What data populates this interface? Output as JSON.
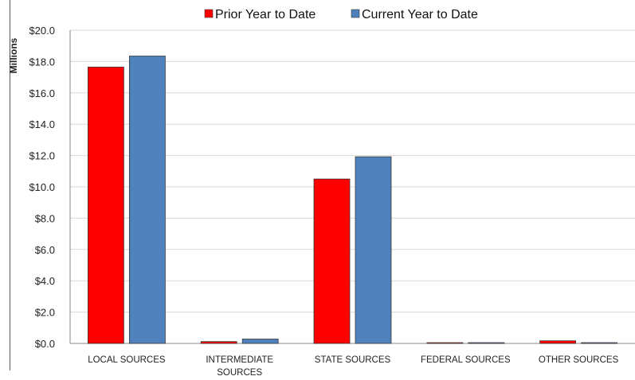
{
  "chart_data": {
    "type": "bar",
    "categories": [
      "LOCAL SOURCES",
      "INTERMEDIATE SOURCES",
      "STATE SOURCES",
      "FEDERAL SOURCES",
      "OTHER SOURCES"
    ],
    "category_lines": [
      [
        "LOCAL SOURCES"
      ],
      [
        "INTERMEDIATE",
        "SOURCES"
      ],
      [
        "STATE SOURCES"
      ],
      [
        "FEDERAL SOURCES"
      ],
      [
        "OTHER SOURCES"
      ]
    ],
    "series": [
      {
        "name": "Prior Year to Date",
        "color": "#ff0000",
        "values": [
          17.65,
          0.12,
          10.5,
          0.0,
          0.17
        ]
      },
      {
        "name": "Current Year to Date",
        "color": "#4f81bd",
        "values": [
          18.35,
          0.28,
          11.92,
          0.02,
          0.04
        ]
      }
    ],
    "ylabel": "Millions",
    "ylim": [
      0,
      20
    ],
    "yticks": [
      "$0.0",
      "$2.0",
      "$4.0",
      "$6.0",
      "$8.0",
      "$10.0",
      "$12.0",
      "$14.0",
      "$16.0",
      "$18.0",
      "$20.0"
    ],
    "grid": true,
    "legend": "top-center"
  }
}
